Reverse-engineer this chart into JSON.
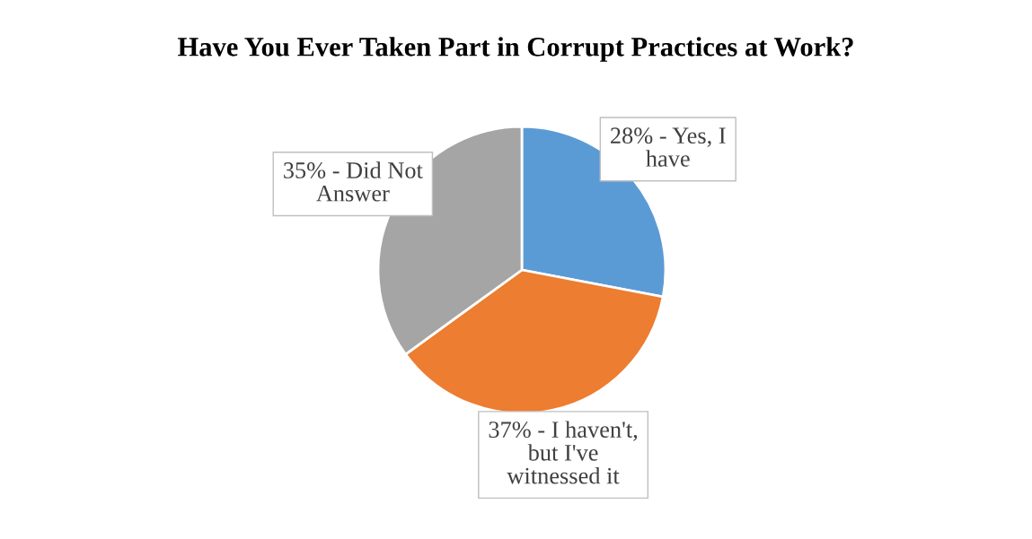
{
  "chart_data": {
    "type": "pie",
    "title": "Have You Ever Taken Part in Corrupt Practices at Work?",
    "categories": [
      "28% - Yes, I have",
      "37% - I haven't, but I've witnessed it",
      "35% - Did Not Answer"
    ],
    "values": [
      28,
      37,
      35
    ],
    "colors": [
      "#5b9bd5",
      "#ed7d31",
      "#a5a5a5"
    ]
  }
}
